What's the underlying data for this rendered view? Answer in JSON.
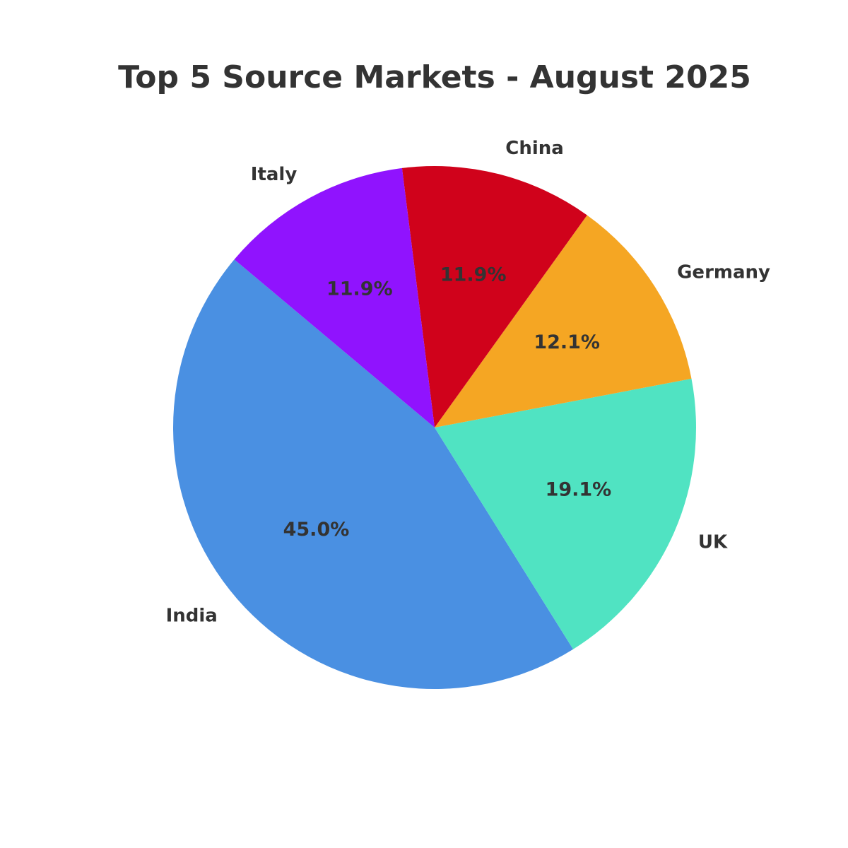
{
  "chart_data": {
    "type": "pie",
    "title": "Top 5 Source Markets - August 2025",
    "categories": [
      "India",
      "UK",
      "Germany",
      "China",
      "Italy"
    ],
    "values": [
      45.0,
      19.1,
      12.1,
      11.9,
      11.9
    ],
    "value_labels": [
      "45.0%",
      "19.1%",
      "12.1%",
      "11.9%",
      "11.9%"
    ],
    "colors": [
      "#4a90e2",
      "#50e3c2",
      "#f5a623",
      "#d0021b",
      "#9013fe"
    ]
  }
}
